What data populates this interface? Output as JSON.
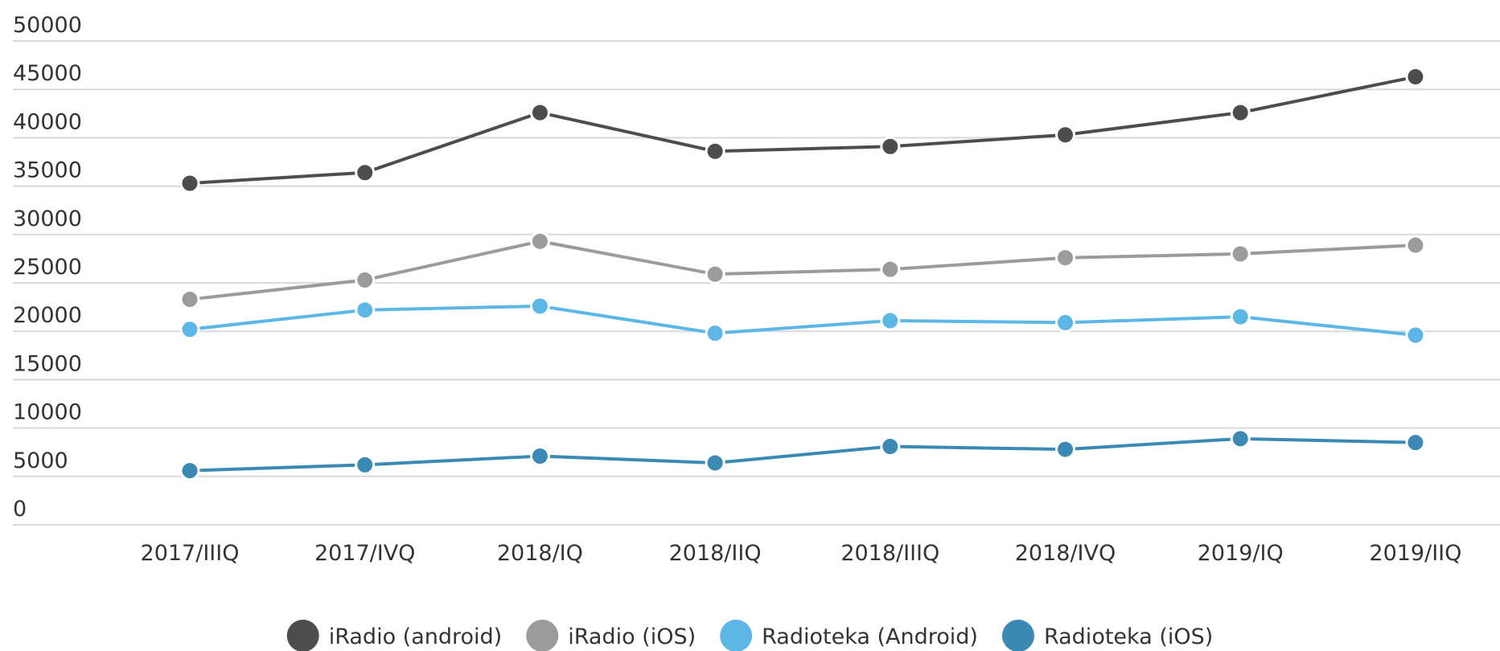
{
  "chart_data": {
    "type": "line",
    "categories": [
      "2017/IIIQ",
      "2017/IVQ",
      "2018/IQ",
      "2018/IIQ",
      "2018/IIIQ",
      "2018/IVQ",
      "2019/IQ",
      "2019/IIQ"
    ],
    "series": [
      {
        "name": "iRadio (android)",
        "color": "#4d4d4d",
        "values": [
          35300,
          36400,
          42600,
          38600,
          39100,
          40300,
          42600,
          46300
        ]
      },
      {
        "name": "iRadio (iOS)",
        "color": "#9b9b9b",
        "values": [
          23300,
          25300,
          29300,
          25900,
          26400,
          27600,
          28000,
          28900
        ]
      },
      {
        "name": "Radioteka (Android)",
        "color": "#5db7e6",
        "values": [
          20200,
          22200,
          22600,
          19800,
          21100,
          20900,
          21500,
          19600
        ]
      },
      {
        "name": "Radioteka (iOS)",
        "color": "#3a8ab5",
        "values": [
          5600,
          6200,
          7100,
          6400,
          8100,
          7800,
          8900,
          8500
        ]
      }
    ],
    "ylim": [
      0,
      50000
    ],
    "yticks": [
      0,
      5000,
      10000,
      15000,
      20000,
      25000,
      30000,
      35000,
      40000,
      45000,
      50000
    ],
    "grid": true,
    "legend": "bottom"
  }
}
